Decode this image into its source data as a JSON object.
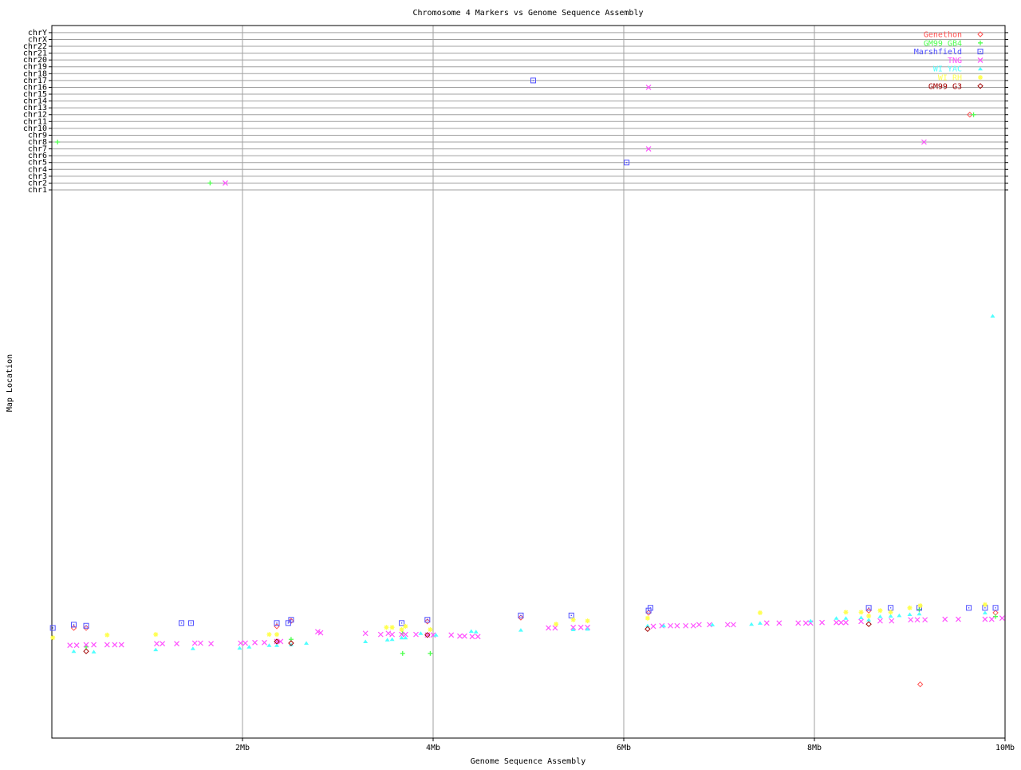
{
  "chart_data": {
    "type": "scatter",
    "title": "Chromosome 4 Markers vs Genome Sequence Assembly",
    "xlabel": "Genome Sequence Assembly",
    "ylabel": "Map Location",
    "xlim": [
      0,
      10
    ],
    "x_unit": "Mb",
    "x_ticks": [
      {
        "v": 2,
        "label": "2Mb"
      },
      {
        "v": 4,
        "label": "4Mb"
      },
      {
        "v": 6,
        "label": "6Mb"
      },
      {
        "v": 8,
        "label": "8Mb"
      },
      {
        "v": 10,
        "label": "10Mb"
      }
    ],
    "y_categories": [
      "chr1",
      "chr2",
      "chr3",
      "chr4",
      "chr5",
      "chr6",
      "chr7",
      "chr8",
      "chr9",
      "chr10",
      "chr11",
      "chr12",
      "chr13",
      "chr14",
      "chr15",
      "chr16",
      "chr17",
      "chr18",
      "chr19",
      "chr20",
      "chr21",
      "chr22",
      "chrX",
      "chrY"
    ],
    "grid": true,
    "legend_position": "top-right",
    "series": [
      {
        "name": "Genethon",
        "color": "#ff5050",
        "symbol": "diamond",
        "points": [
          [
            0.23,
            20.3
          ],
          [
            0.36,
            20.3
          ],
          [
            2.36,
            20.6
          ],
          [
            2.51,
            21.6
          ],
          [
            3.94,
            21.5
          ],
          [
            4.92,
            22.2
          ],
          [
            6.26,
            23.1
          ],
          [
            8.57,
            23.5
          ],
          [
            9.9,
            23.1
          ],
          [
            9.11,
            9.9
          ],
          [
            9.63,
            "chr12"
          ]
        ]
      },
      {
        "name": "GM99 GB4",
        "color": "#50ff50",
        "symbol": "plus",
        "points": [
          [
            0.36,
            16.8
          ],
          [
            2.51,
            18.2
          ],
          [
            3.68,
            15.6
          ],
          [
            3.97,
            15.6
          ],
          [
            3.68,
            19.3
          ],
          [
            9.1,
            23.7
          ],
          [
            9.9,
            22.4
          ],
          [
            0.06,
            "chr8"
          ],
          [
            1.66,
            "chr2"
          ],
          [
            9.67,
            "chr12"
          ]
        ]
      },
      {
        "name": "Marshfield",
        "color": "#5050ff",
        "symbol": "square",
        "points": [
          [
            0.01,
            20.3
          ],
          [
            0.23,
            20.9
          ],
          [
            0.36,
            20.7
          ],
          [
            1.36,
            21.2
          ],
          [
            1.46,
            21.2
          ],
          [
            2.36,
            21.2
          ],
          [
            2.48,
            21.2
          ],
          [
            2.51,
            21.8
          ],
          [
            3.67,
            21.2
          ],
          [
            3.94,
            21.8
          ],
          [
            4.92,
            22.6
          ],
          [
            5.45,
            22.6
          ],
          [
            6.26,
            23.5
          ],
          [
            6.28,
            24.0
          ],
          [
            8.57,
            24.0
          ],
          [
            8.8,
            24.0
          ],
          [
            9.1,
            24.0
          ],
          [
            9.62,
            24.0
          ],
          [
            9.79,
            24.0
          ],
          [
            9.9,
            24.0
          ],
          [
            5.05,
            "chr17"
          ],
          [
            6.03,
            "chr5"
          ]
        ]
      },
      {
        "name": "TNG",
        "color": "#ff50ff",
        "symbol": "cross",
        "points": [
          [
            0.19,
            17.1
          ],
          [
            0.26,
            17.1
          ],
          [
            0.36,
            17.2
          ],
          [
            0.44,
            17.2
          ],
          [
            0.58,
            17.2
          ],
          [
            0.66,
            17.2
          ],
          [
            0.73,
            17.2
          ],
          [
            1.1,
            17.4
          ],
          [
            1.16,
            17.4
          ],
          [
            1.31,
            17.4
          ],
          [
            1.5,
            17.5
          ],
          [
            1.56,
            17.5
          ],
          [
            1.67,
            17.4
          ],
          [
            1.98,
            17.5
          ],
          [
            2.03,
            17.5
          ],
          [
            2.13,
            17.6
          ],
          [
            2.23,
            17.6
          ],
          [
            2.36,
            17.8
          ],
          [
            2.4,
            17.8
          ],
          [
            2.79,
            19.6
          ],
          [
            2.82,
            19.4
          ],
          [
            3.29,
            19.3
          ],
          [
            3.45,
            19.1
          ],
          [
            3.53,
            19.3
          ],
          [
            3.57,
            19.1
          ],
          [
            3.67,
            19.1
          ],
          [
            3.71,
            19.1
          ],
          [
            3.82,
            19.1
          ],
          [
            3.94,
            19.0
          ],
          [
            4.0,
            19.0
          ],
          [
            4.19,
            19.0
          ],
          [
            4.28,
            18.8
          ],
          [
            4.33,
            18.8
          ],
          [
            4.41,
            18.7
          ],
          [
            4.47,
            18.7
          ],
          [
            5.21,
            20.3
          ],
          [
            5.28,
            20.3
          ],
          [
            5.47,
            20.4
          ],
          [
            5.55,
            20.4
          ],
          [
            5.62,
            20.4
          ],
          [
            6.31,
            20.6
          ],
          [
            6.4,
            20.7
          ],
          [
            6.49,
            20.7
          ],
          [
            6.56,
            20.7
          ],
          [
            6.65,
            20.7
          ],
          [
            6.73,
            20.7
          ],
          [
            6.79,
            20.9
          ],
          [
            6.9,
            20.9
          ],
          [
            7.09,
            20.9
          ],
          [
            7.15,
            20.9
          ],
          [
            7.5,
            21.2
          ],
          [
            7.63,
            21.2
          ],
          [
            7.83,
            21.2
          ],
          [
            7.91,
            21.2
          ],
          [
            7.96,
            21.2
          ],
          [
            8.08,
            21.3
          ],
          [
            8.23,
            21.3
          ],
          [
            8.28,
            21.3
          ],
          [
            8.33,
            21.3
          ],
          [
            8.49,
            21.5
          ],
          [
            8.69,
            21.6
          ],
          [
            8.81,
            21.6
          ],
          [
            9.01,
            21.8
          ],
          [
            9.08,
            21.8
          ],
          [
            9.16,
            21.8
          ],
          [
            9.37,
            21.9
          ],
          [
            9.51,
            21.9
          ],
          [
            9.79,
            21.9
          ],
          [
            9.86,
            21.9
          ],
          [
            9.97,
            22.1
          ],
          [
            1.82,
            "chr2"
          ],
          [
            6.26,
            "chr16"
          ],
          [
            6.26,
            "chr7"
          ],
          [
            9.15,
            "chr8"
          ]
        ]
      },
      {
        "name": "WI YAC",
        "color": "#50ffff",
        "symbol": "triangle",
        "points": [
          [
            0.23,
            16.0
          ],
          [
            0.44,
            15.9
          ],
          [
            1.09,
            16.3
          ],
          [
            1.48,
            16.5
          ],
          [
            1.97,
            16.6
          ],
          [
            2.07,
            16.8
          ],
          [
            2.28,
            17.1
          ],
          [
            2.36,
            17.1
          ],
          [
            2.51,
            17.2
          ],
          [
            2.67,
            17.5
          ],
          [
            3.29,
            17.8
          ],
          [
            3.52,
            18.1
          ],
          [
            3.57,
            18.2
          ],
          [
            3.67,
            18.5
          ],
          [
            3.71,
            18.5
          ],
          [
            3.87,
            19.3
          ],
          [
            4.03,
            19.0
          ],
          [
            4.4,
            19.7
          ],
          [
            4.45,
            19.6
          ],
          [
            4.92,
            19.9
          ],
          [
            5.47,
            20.0
          ],
          [
            5.62,
            20.1
          ],
          [
            6.25,
            20.7
          ],
          [
            6.42,
            20.7
          ],
          [
            6.93,
            20.9
          ],
          [
            7.34,
            21.0
          ],
          [
            7.43,
            21.2
          ],
          [
            7.96,
            21.6
          ],
          [
            8.23,
            22.1
          ],
          [
            8.33,
            22.1
          ],
          [
            8.49,
            22.2
          ],
          [
            8.57,
            21.8
          ],
          [
            8.69,
            22.4
          ],
          [
            8.8,
            22.5
          ],
          [
            8.89,
            22.6
          ],
          [
            9.0,
            22.8
          ],
          [
            9.1,
            22.9
          ],
          [
            9.79,
            23.1
          ],
          [
            9.87,
            77.8
          ]
        ]
      },
      {
        "name": "WI RH",
        "color": "#ffff50",
        "symbol": "star",
        "points": [
          [
            0.01,
            18.5
          ],
          [
            0.58,
            19.0
          ],
          [
            1.09,
            19.1
          ],
          [
            2.28,
            19.1
          ],
          [
            2.36,
            19.1
          ],
          [
            3.51,
            20.4
          ],
          [
            3.57,
            20.4
          ],
          [
            3.71,
            20.6
          ],
          [
            3.67,
            20.0
          ],
          [
            3.97,
            20.0
          ],
          [
            5.29,
            21.0
          ],
          [
            5.47,
            21.8
          ],
          [
            5.62,
            21.6
          ],
          [
            6.25,
            22.1
          ],
          [
            7.43,
            23.1
          ],
          [
            8.33,
            23.2
          ],
          [
            8.49,
            23.2
          ],
          [
            8.57,
            22.5
          ],
          [
            8.69,
            23.5
          ],
          [
            8.8,
            23.2
          ],
          [
            9.0,
            24.0
          ],
          [
            9.11,
            24.4
          ],
          [
            9.79,
            24.6
          ]
        ]
      },
      {
        "name": "GM99 G3",
        "color": "#a00000",
        "symbol": "diamond",
        "points": [
          [
            0.36,
            16.0
          ],
          [
            2.36,
            17.8
          ],
          [
            2.51,
            17.5
          ],
          [
            3.94,
            19.0
          ],
          [
            6.25,
            20.1
          ],
          [
            8.57,
            21.0
          ]
        ]
      }
    ]
  }
}
